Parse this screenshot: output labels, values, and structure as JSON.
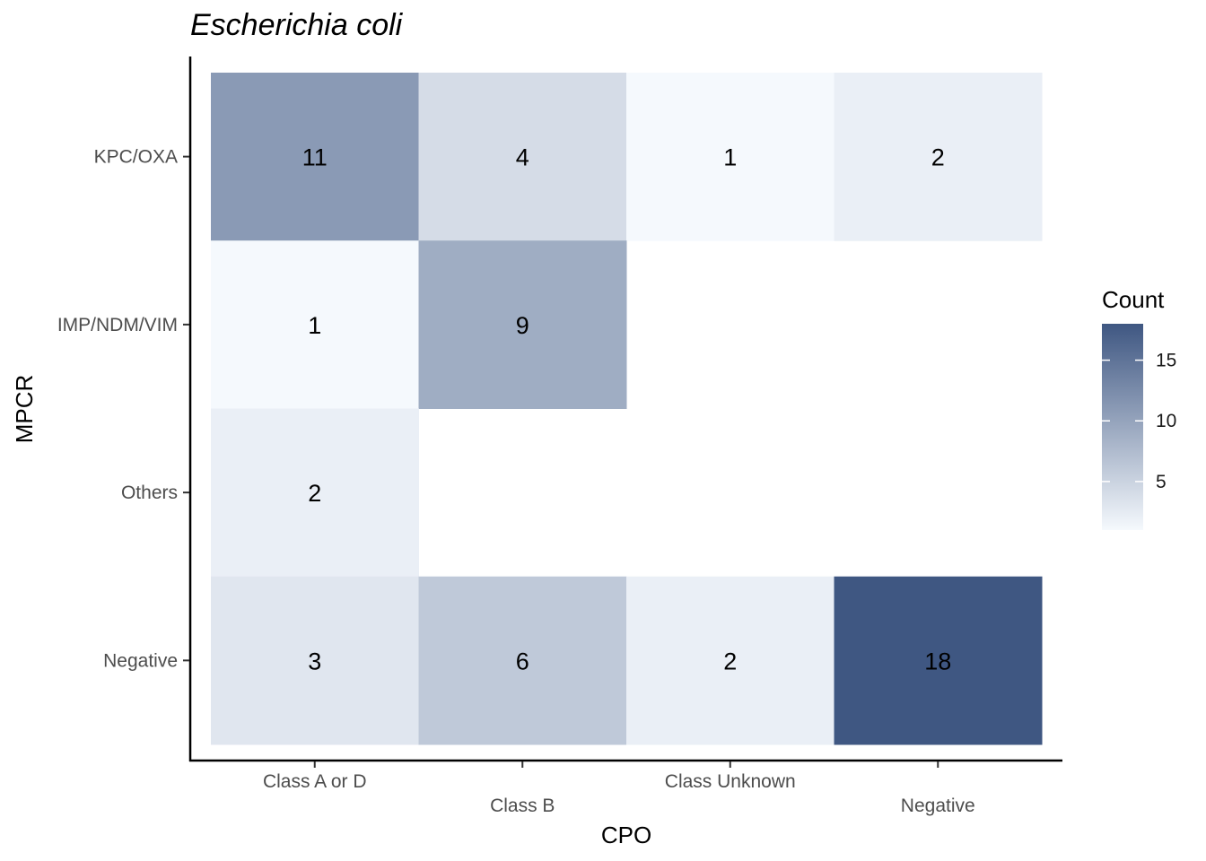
{
  "chart_data": {
    "type": "heatmap",
    "title": "Escherichia coli",
    "xlabel": "CPO",
    "ylabel": "MPCR",
    "x_categories": [
      "Class A or D",
      "Class B",
      "Class Unknown",
      "Negative"
    ],
    "y_categories": [
      "KPC/OXA",
      "IMP/NDM/VIM",
      "Others",
      "Negative"
    ],
    "cells": [
      {
        "x": "Class A or D",
        "y": "KPC/OXA",
        "value": 11
      },
      {
        "x": "Class B",
        "y": "KPC/OXA",
        "value": 4
      },
      {
        "x": "Class Unknown",
        "y": "KPC/OXA",
        "value": 1
      },
      {
        "x": "Negative",
        "y": "KPC/OXA",
        "value": 2
      },
      {
        "x": "Class A or D",
        "y": "IMP/NDM/VIM",
        "value": 1
      },
      {
        "x": "Class B",
        "y": "IMP/NDM/VIM",
        "value": 9
      },
      {
        "x": "Class A or D",
        "y": "Others",
        "value": 2
      },
      {
        "x": "Class A or D",
        "y": "Negative",
        "value": 3
      },
      {
        "x": "Class B",
        "y": "Negative",
        "value": 6
      },
      {
        "x": "Class Unknown",
        "y": "Negative",
        "value": 2
      },
      {
        "x": "Negative",
        "y": "Negative",
        "value": 18
      }
    ],
    "legend": {
      "title": "Count",
      "breaks": [
        5,
        10,
        15
      ],
      "range": [
        1,
        18
      ],
      "color_low": "#f5f9fd",
      "color_high": "#3f5782",
      "placement": "right"
    },
    "grid": false
  }
}
